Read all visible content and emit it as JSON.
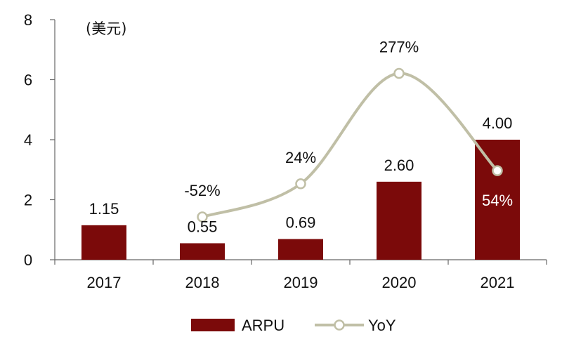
{
  "chart_data": {
    "type": "bar",
    "categories": [
      "2017",
      "2018",
      "2019",
      "2020",
      "2021"
    ],
    "series": [
      {
        "name": "ARPU",
        "type": "bar",
        "axis": "left",
        "values": [
          1.15,
          0.55,
          0.69,
          2.6,
          4.0
        ],
        "labels": [
          "1.15",
          "0.55",
          "0.69",
          "2.60",
          "4.00"
        ],
        "color": "#7b0a0a"
      },
      {
        "name": "YoY",
        "type": "line",
        "axis": "right",
        "values": [
          null,
          -52,
          24,
          277,
          54
        ],
        "labels": [
          "",
          "-52%",
          "24%",
          "277%",
          "54%"
        ],
        "color": "#c0bfa6"
      }
    ],
    "unit_label": "(美元)",
    "ylim": [
      0,
      8
    ],
    "yticks": [
      "0",
      "2",
      "4",
      "6",
      "8"
    ],
    "grid": false,
    "legend_position": "bottom"
  }
}
